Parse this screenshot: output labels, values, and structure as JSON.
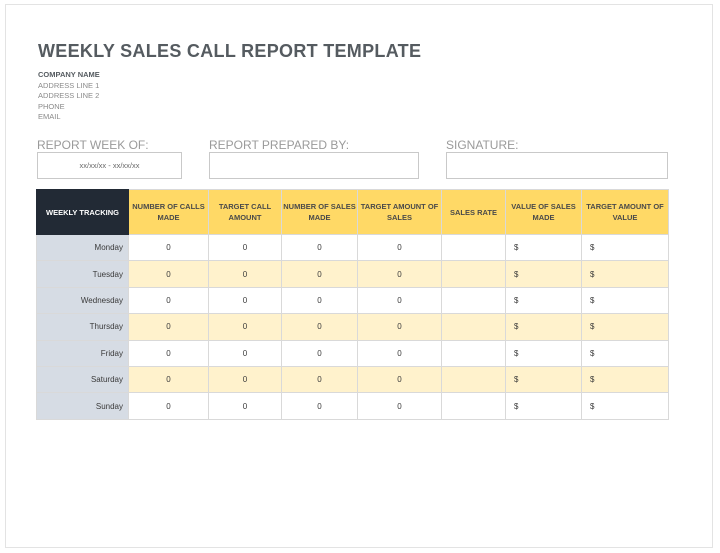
{
  "title": "WEEKLY SALES CALL REPORT TEMPLATE",
  "company": {
    "name": "COMPANY NAME",
    "address1": "ADDRESS LINE 1",
    "address2": "ADDRESS LINE 2",
    "phone": "PHONE",
    "email": "EMAIL"
  },
  "fields": {
    "report_week_label": "REPORT WEEK OF:",
    "report_week_value": "xx/xx/xx - xx/xx/xx",
    "prepared_by_label": "REPORT PREPARED BY:",
    "prepared_by_value": "",
    "signature_label": "SIGNATURE:",
    "signature_value": ""
  },
  "table": {
    "headers": [
      "WEEKLY TRACKING",
      "NUMBER OF CALLS MADE",
      "TARGET CALL AMOUNT",
      "NUMBER OF SALES MADE",
      "TARGET AMOUNT OF SALES",
      "SALES RATE",
      "VALUE OF SALES MADE",
      "TARGET AMOUNT OF VALUE"
    ],
    "rows": [
      {
        "day": "Monday",
        "calls": "0",
        "target_calls": "0",
        "sales": "0",
        "target_sales": "0",
        "rate": "",
        "value": "$",
        "target_value": "$"
      },
      {
        "day": "Tuesday",
        "calls": "0",
        "target_calls": "0",
        "sales": "0",
        "target_sales": "0",
        "rate": "",
        "value": "$",
        "target_value": "$"
      },
      {
        "day": "Wednesday",
        "calls": "0",
        "target_calls": "0",
        "sales": "0",
        "target_sales": "0",
        "rate": "",
        "value": "$",
        "target_value": "$"
      },
      {
        "day": "Thursday",
        "calls": "0",
        "target_calls": "0",
        "sales": "0",
        "target_sales": "0",
        "rate": "",
        "value": "$",
        "target_value": "$"
      },
      {
        "day": "Friday",
        "calls": "0",
        "target_calls": "0",
        "sales": "0",
        "target_sales": "0",
        "rate": "",
        "value": "$",
        "target_value": "$"
      },
      {
        "day": "Saturday",
        "calls": "0",
        "target_calls": "0",
        "sales": "0",
        "target_sales": "0",
        "rate": "",
        "value": "$",
        "target_value": "$"
      },
      {
        "day": "Sunday",
        "calls": "0",
        "target_calls": "0",
        "sales": "0",
        "target_sales": "0",
        "rate": "",
        "value": "$",
        "target_value": "$"
      }
    ]
  },
  "colors": {
    "header_yellow": "#ffd966",
    "row_alt_yellow": "#fff2cc",
    "day_col_blue": "#d6dce4",
    "corner_dark": "#222a35"
  }
}
